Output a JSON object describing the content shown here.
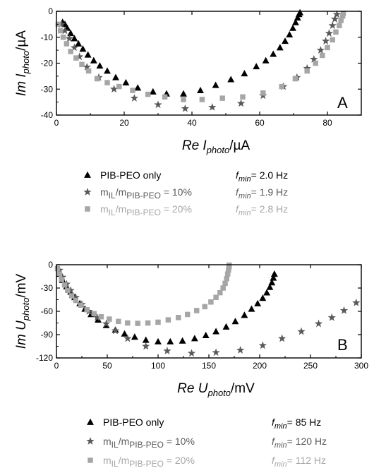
{
  "colors": {
    "black": "#000000",
    "dark": "#5a5a5a",
    "light": "#a6a6a6"
  },
  "chart_data": [
    {
      "type": "scatter",
      "panel": "A",
      "xlabel": {
        "main": "Re",
        "var": "I",
        "sub": "photo",
        "unit": "/µA"
      },
      "ylabel": {
        "main": "Im",
        "var": "I",
        "sub": "photo",
        "unit": "/µA"
      },
      "xlim": [
        0,
        90
      ],
      "ylim": [
        -40,
        0
      ],
      "xticks": [
        "0",
        "20",
        "40",
        "60",
        "80"
      ],
      "xtick_values": [
        0,
        20,
        40,
        60,
        80
      ],
      "yticks": [
        "0",
        "-10",
        "-20",
        "-30",
        "-40"
      ],
      "ytick_values": [
        0,
        -10,
        -20,
        -30,
        -40
      ],
      "legend_position": "below",
      "series": [
        {
          "label_plain": "PIB-PEO only",
          "fmin_prefix": "f",
          "fmin_sub": "min",
          "fmin_value": "= 2.0 Hz",
          "marker": "triangle",
          "color": "#000000",
          "points": [
            [
              1.8,
              -4.2
            ],
            [
              2.5,
              -5
            ],
            [
              3.2,
              -6.5
            ],
            [
              4.2,
              -8.5
            ],
            [
              5.3,
              -10.5
            ],
            [
              6.5,
              -12.5
            ],
            [
              7.8,
              -14.5
            ],
            [
              9.3,
              -16.8
            ],
            [
              11,
              -19
            ],
            [
              12.8,
              -21
            ],
            [
              15,
              -23
            ],
            [
              17.5,
              -25.5
            ],
            [
              20.5,
              -27.5
            ],
            [
              24,
              -29.5
            ],
            [
              28.5,
              -31
            ],
            [
              32.5,
              -31.8
            ],
            [
              37.5,
              -31.8
            ],
            [
              42.5,
              -30.5
            ],
            [
              47,
              -28.5
            ],
            [
              51.5,
              -26.3
            ],
            [
              55.5,
              -24
            ],
            [
              59,
              -21.3
            ],
            [
              61.8,
              -19
            ],
            [
              64,
              -16.5
            ],
            [
              66,
              -14
            ],
            [
              67.5,
              -11.5
            ],
            [
              68.8,
              -9
            ],
            [
              69.8,
              -6.5
            ],
            [
              70.6,
              -4.3
            ],
            [
              71.2,
              -2.5
            ],
            [
              71.6,
              -1.2
            ],
            [
              71.9,
              -0.5
            ]
          ]
        },
        {
          "label_pre": "m",
          "label_sub1": "IL",
          "label_mid": "/m",
          "label_sub2": "PIB-PEO",
          "label_post": " = 10%",
          "fmin_prefix": "f",
          "fmin_sub": "min",
          "fmin_value": "= 1.9 Hz",
          "marker": "star",
          "color": "#5a5a5a",
          "points": [
            [
              1.5,
              -5
            ],
            [
              2.5,
              -7.5
            ],
            [
              3.8,
              -10.5
            ],
            [
              5.3,
              -14
            ],
            [
              6.8,
              -17.5
            ],
            [
              9,
              -21.5
            ],
            [
              12.5,
              -25.5
            ],
            [
              17,
              -30
            ],
            [
              23,
              -33.5
            ],
            [
              30,
              -36
            ],
            [
              38,
              -37.5
            ],
            [
              46,
              -37
            ],
            [
              54.5,
              -35.5
            ],
            [
              61,
              -32.5
            ],
            [
              67,
              -29
            ],
            [
              71,
              -25.5
            ],
            [
              74,
              -22
            ],
            [
              76,
              -18.5
            ],
            [
              78,
              -15
            ],
            [
              79.5,
              -11.5
            ],
            [
              80.5,
              -8.5
            ],
            [
              81.5,
              -5.5
            ],
            [
              82.2,
              -3
            ],
            [
              82.8,
              -1.2
            ]
          ]
        },
        {
          "label_pre": "m",
          "label_sub1": "IL",
          "label_mid": "/m",
          "label_sub2": "PIB-PEO",
          "label_post": " = 20%",
          "fmin_prefix": "f",
          "fmin_sub": "min",
          "fmin_value": "= 2.8 Hz",
          "marker": "square",
          "color": "#a6a6a6",
          "points": [
            [
              0.5,
              -5
            ],
            [
              1.2,
              -7.5
            ],
            [
              2,
              -10
            ],
            [
              3,
              -12.5
            ],
            [
              4.2,
              -15.5
            ],
            [
              5.8,
              -18
            ],
            [
              7.5,
              -20.5
            ],
            [
              9.5,
              -23
            ],
            [
              12,
              -26
            ],
            [
              15,
              -27.5
            ],
            [
              18.5,
              -29
            ],
            [
              22.5,
              -30.5
            ],
            [
              27,
              -32
            ],
            [
              32,
              -33
            ],
            [
              37.5,
              -34
            ],
            [
              43,
              -34
            ],
            [
              49,
              -33.5
            ],
            [
              55,
              -33
            ],
            [
              61,
              -31.5
            ],
            [
              66.5,
              -29
            ],
            [
              70.5,
              -26
            ],
            [
              74,
              -23
            ],
            [
              76.5,
              -20
            ],
            [
              78.5,
              -17
            ],
            [
              80,
              -14
            ],
            [
              81.5,
              -11
            ],
            [
              82.5,
              -8
            ],
            [
              83.5,
              -5.5
            ],
            [
              84,
              -3.5
            ],
            [
              84.5,
              -1.8
            ],
            [
              84.7,
              -0.8
            ]
          ]
        }
      ]
    },
    {
      "type": "scatter",
      "panel": "B",
      "xlabel": {
        "main": "Re",
        "var": "U",
        "sub": "photo",
        "unit": "/mV"
      },
      "ylabel": {
        "main": "Im",
        "var": "U",
        "sub": "photo",
        "unit": "/mV"
      },
      "xlim": [
        0,
        300
      ],
      "ylim": [
        -120,
        0
      ],
      "xticks": [
        "0",
        "50",
        "100",
        "150",
        "200",
        "250",
        "300"
      ],
      "xtick_values": [
        0,
        50,
        100,
        150,
        200,
        250,
        300
      ],
      "yticks": [
        "0",
        "-30",
        "-60",
        "-90",
        "-120"
      ],
      "ytick_values": [
        0,
        -30,
        -60,
        -90,
        -120
      ],
      "legend_position": "below",
      "series": [
        {
          "label_plain": "PIB-PEO only",
          "fmin_prefix": "f",
          "fmin_sub": "min",
          "fmin_value": "= 85 Hz",
          "marker": "triangle",
          "color": "#000000",
          "points": [
            [
              3,
              -12
            ],
            [
              6,
              -20
            ],
            [
              10,
              -28
            ],
            [
              14,
              -35
            ],
            [
              18,
              -42
            ],
            [
              23,
              -50
            ],
            [
              28,
              -57
            ],
            [
              34,
              -64
            ],
            [
              41,
              -71
            ],
            [
              49,
              -78
            ],
            [
              58,
              -84
            ],
            [
              67,
              -89
            ],
            [
              77,
              -93
            ],
            [
              88,
              -97
            ],
            [
              100,
              -99
            ],
            [
              112,
              -99
            ],
            [
              124,
              -98
            ],
            [
              136,
              -95
            ],
            [
              147,
              -91
            ],
            [
              157,
              -86
            ],
            [
              167,
              -80
            ],
            [
              176,
              -73
            ],
            [
              185,
              -65
            ],
            [
              192,
              -57
            ],
            [
              198,
              -50
            ],
            [
              203,
              -43
            ],
            [
              207,
              -36
            ],
            [
              210,
              -29
            ],
            [
              212,
              -23
            ],
            [
              213.5,
              -17
            ],
            [
              214.5,
              -12
            ]
          ]
        },
        {
          "label_pre": "m",
          "label_sub1": "IL",
          "label_mid": "/m",
          "label_sub2": "PIB-PEO",
          "label_post": " = 10%",
          "fmin_prefix": "f",
          "fmin_sub": "min",
          "fmin_value": "= 120 Hz",
          "marker": "star",
          "color": "#5a5a5a",
          "points": [
            [
              3,
              -7
            ],
            [
              6,
              -16
            ],
            [
              10,
              -25
            ],
            [
              14,
              -33
            ],
            [
              19,
              -42
            ],
            [
              25,
              -51
            ],
            [
              32,
              -60
            ],
            [
              40,
              -68
            ],
            [
              49,
              -76
            ],
            [
              58,
              -85
            ],
            [
              70,
              -95
            ],
            [
              88,
              -105
            ],
            [
              109,
              -111
            ],
            [
              133,
              -114
            ],
            [
              157,
              -113
            ],
            [
              181,
              -110
            ],
            [
              203,
              -104
            ],
            [
              222,
              -95
            ],
            [
              241,
              -86
            ],
            [
              258,
              -76
            ],
            [
              271,
              -68
            ],
            [
              283,
              -59
            ],
            [
              295,
              -49
            ]
          ]
        },
        {
          "label_pre": "m",
          "label_sub1": "IL",
          "label_mid": "/m",
          "label_sub2": "PIB-PEO",
          "label_post": " = 20%",
          "fmin_prefix": "f",
          "fmin_sub": "min",
          "fmin_value": "= 112 Hz",
          "marker": "square",
          "color": "#a6a6a6",
          "points": [
            [
              1,
              -5
            ],
            [
              3,
              -12
            ],
            [
              5,
              -19
            ],
            [
              8,
              -26
            ],
            [
              11,
              -33
            ],
            [
              15,
              -40
            ],
            [
              19,
              -46
            ],
            [
              24,
              -52
            ],
            [
              30,
              -58
            ],
            [
              37,
              -63
            ],
            [
              44,
              -67
            ],
            [
              52,
              -70
            ],
            [
              61,
              -73
            ],
            [
              70,
              -75
            ],
            [
              80,
              -75.5
            ],
            [
              90,
              -75
            ],
            [
              100,
              -74
            ],
            [
              110,
              -71
            ],
            [
              120,
              -68
            ],
            [
              129,
              -64
            ],
            [
              138,
              -59
            ],
            [
              146,
              -54
            ],
            [
              152,
              -48
            ],
            [
              157,
              -42
            ],
            [
              161,
              -36
            ],
            [
              164,
              -30
            ],
            [
              166,
              -24
            ],
            [
              167.5,
              -18
            ],
            [
              168.5,
              -12
            ],
            [
              169.3,
              -7
            ],
            [
              169.8,
              -3
            ],
            [
              170,
              -0.5
            ]
          ]
        }
      ]
    }
  ]
}
